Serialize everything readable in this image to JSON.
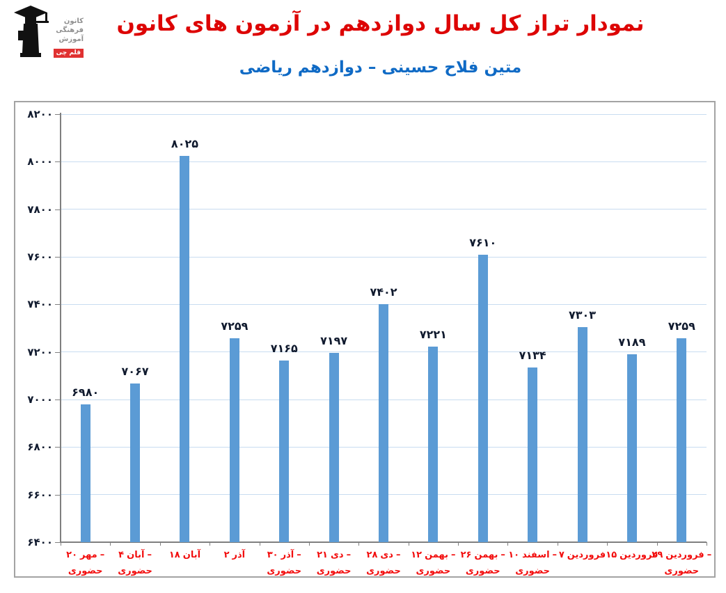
{
  "header": {
    "title": "نمودار تراز کل سال دوازدهم در آزمون های کانون",
    "subtitle": "متین فلاح حسینی – دوازدهم ریاضی",
    "logo": {
      "lines": [
        "کانون",
        "فرهنگی",
        "آموزش"
      ],
      "badge": "قلم چی",
      "badge_color": "#e03131"
    }
  },
  "colors": {
    "title": "#dd0404",
    "subtitle": "#0f6ac5",
    "bar": "#5b9bd5",
    "gridline": "#c8dcf0",
    "axis": "#7f7f7f",
    "x_label": "#f20d0d",
    "value_label": "#101a2e",
    "chart_border": "#a3a3a3"
  },
  "chart_data": {
    "type": "bar",
    "title": "نمودار تراز کل سال دوازدهم در آزمون های کانون",
    "subtitle": "متین فلاح حسینی – دوازدهم ریاضی",
    "xlabel": "",
    "ylabel": "",
    "ylim": [
      6400,
      8200
    ],
    "ytick_step": 200,
    "grid": true,
    "legend": false,
    "bar_color": "#5b9bd5",
    "categories": [
      "۲۰ مهر – حضوری",
      "۴ آبان – حضوری",
      "۱۸ آبان",
      "۲ آذر",
      "۳۰ آذر – حضوری",
      "۲۱ دی – حضوری",
      "۲۸ دی – حضوری",
      "۱۲ بهمن – حضوری",
      "۲۶ بهمن – حضوری",
      "۱۰ اسفند – حضوری",
      "۷ فروردین",
      "۱۵ فروردین",
      "۲۹ فروردین – حضوری"
    ],
    "category_lines": [
      {
        "line1_tokens": [
          "۲۰",
          "مهر",
          "–"
        ],
        "line2": "حضوری"
      },
      {
        "line1_tokens": [
          "۴",
          "آبان",
          "–"
        ],
        "line2": "حضوری"
      },
      {
        "line1_tokens": [
          "۱۸",
          "آبان"
        ],
        "line2": ""
      },
      {
        "line1_tokens": [
          "۲",
          "آذر"
        ],
        "line2": ""
      },
      {
        "line1_tokens": [
          "۳۰",
          "آذر",
          "–"
        ],
        "line2": "حضوری"
      },
      {
        "line1_tokens": [
          "۲۱",
          "دی",
          "–"
        ],
        "line2": "حضوری"
      },
      {
        "line1_tokens": [
          "۲۸",
          "دی",
          "–"
        ],
        "line2": "حضوری"
      },
      {
        "line1_tokens": [
          "۱۲",
          "بهمن",
          "–"
        ],
        "line2": "حضوری"
      },
      {
        "line1_tokens": [
          "۲۶",
          "بهمن",
          "–"
        ],
        "line2": "حضوری"
      },
      {
        "line1_tokens": [
          "۱۰",
          "اسفند",
          "–"
        ],
        "line2": "حضوری"
      },
      {
        "line1_tokens": [
          "۷",
          "فروردین"
        ],
        "line2": ""
      },
      {
        "line1_tokens": [
          "۱۵",
          "فروردین"
        ],
        "line2": ""
      },
      {
        "line1_tokens": [
          "۲۹",
          "فروردین",
          "–"
        ],
        "line2": "حضوری"
      }
    ],
    "values": [
      6980,
      7067,
      8025,
      7259,
      7165,
      7197,
      7402,
      7221,
      7610,
      7134,
      7303,
      7189,
      7259
    ],
    "value_labels": [
      "۶۹۸۰",
      "۷۰۶۷",
      "۸۰۲۵",
      "۷۲۵۹",
      "۷۱۶۵",
      "۷۱۹۷",
      "۷۴۰۲",
      "۷۲۲۱",
      "۷۶۱۰",
      "۷۱۳۴",
      "۷۳۰۳",
      "۷۱۸۹",
      "۷۲۵۹"
    ],
    "ytick_labels": [
      "۶۴۰۰",
      "۶۶۰۰",
      "۶۸۰۰",
      "۷۰۰۰",
      "۷۲۰۰",
      "۷۴۰۰",
      "۷۶۰۰",
      "۷۸۰۰",
      "۸۰۰۰",
      "۸۲۰۰"
    ]
  }
}
